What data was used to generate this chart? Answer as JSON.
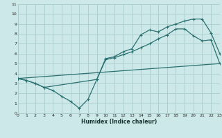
{
  "xlabel": "Humidex (Indice chaleur)",
  "bg_color": "#cde8e8",
  "grid_color": "#aacccc",
  "line_color": "#2a7070",
  "xlim": [
    0,
    23
  ],
  "ylim": [
    0,
    11
  ],
  "xticks": [
    0,
    1,
    2,
    3,
    4,
    5,
    6,
    7,
    8,
    9,
    10,
    11,
    12,
    13,
    14,
    15,
    16,
    17,
    18,
    19,
    20,
    21,
    22,
    23
  ],
  "yticks": [
    0,
    1,
    2,
    3,
    4,
    5,
    6,
    7,
    8,
    9,
    10,
    11
  ],
  "line1_x": [
    0,
    1,
    2,
    3,
    4,
    5,
    6,
    7,
    8,
    9,
    10,
    11,
    12,
    13,
    14,
    15,
    16,
    17,
    18,
    19,
    20,
    21,
    22,
    23
  ],
  "line1_y": [
    3.5,
    3.3,
    3.0,
    2.6,
    2.3,
    1.7,
    1.2,
    0.5,
    1.4,
    3.4,
    5.5,
    5.7,
    6.2,
    6.5,
    7.9,
    8.4,
    8.2,
    8.7,
    9.0,
    9.3,
    9.5,
    9.5,
    8.1,
    6.0
  ],
  "line2_x": [
    0,
    1,
    2,
    3,
    9,
    10,
    11,
    12,
    13,
    14,
    15,
    16,
    17,
    18,
    19,
    20,
    21,
    22,
    23
  ],
  "line2_y": [
    3.5,
    3.3,
    3.0,
    2.6,
    3.4,
    5.4,
    5.6,
    5.9,
    6.2,
    6.6,
    7.0,
    7.5,
    7.9,
    8.5,
    8.5,
    7.8,
    7.3,
    7.4,
    5.0
  ],
  "line3_x": [
    0,
    23
  ],
  "line3_y": [
    3.5,
    5.0
  ]
}
